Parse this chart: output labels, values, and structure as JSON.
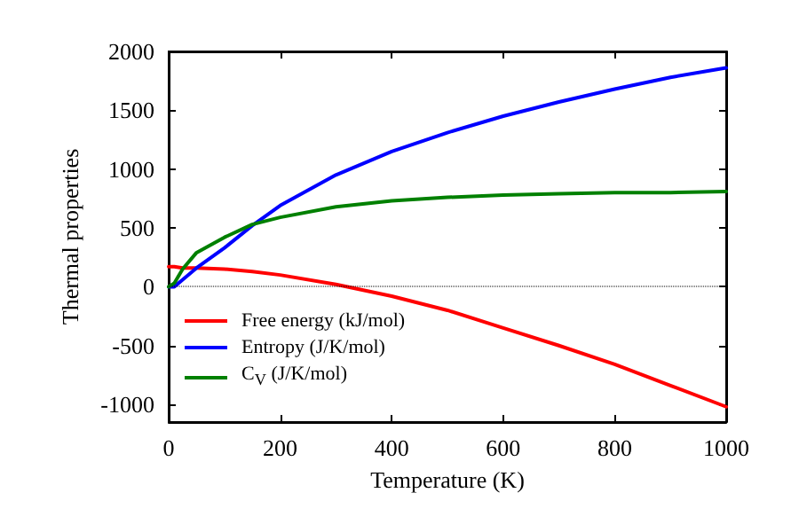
{
  "chart_data": {
    "type": "line",
    "xlabel": "Temperature (K)",
    "ylabel": "Thermal properties",
    "x": [
      0,
      10,
      25,
      50,
      100,
      150,
      200,
      300,
      400,
      500,
      600,
      700,
      800,
      900,
      1000
    ],
    "series": [
      {
        "name": "Free energy (kJ/mol)",
        "color": "#ff0000",
        "values": [
          170,
          170,
          160,
          160,
          150,
          130,
          100,
          20,
          -80,
          -200,
          -350,
          -500,
          -660,
          -840,
          -1020
        ]
      },
      {
        "name": "Entropy (J/K/mol)",
        "color": "#0000ff",
        "values": [
          0,
          0,
          60,
          160,
          330,
          520,
          690,
          950,
          1150,
          1310,
          1450,
          1570,
          1680,
          1780,
          1860
        ]
      },
      {
        "name": "C$_{V}$ (J/K/mol)",
        "color": "#008000",
        "values": [
          0,
          30,
          150,
          290,
          420,
          530,
          590,
          680,
          730,
          760,
          780,
          790,
          800,
          800,
          810
        ]
      }
    ],
    "xlim": [
      0,
      1000
    ],
    "xticks": [
      0,
      200,
      400,
      600,
      800,
      1000
    ],
    "ylim": [
      -1150,
      2000
    ],
    "yticks": [
      -1000,
      -500,
      0,
      500,
      1000,
      1500,
      2000
    ],
    "ref_lines": [
      {
        "axis": "y",
        "value": 0,
        "color": "#000000",
        "line_style": "dotted"
      }
    ],
    "legend": "bottom left",
    "grid": false,
    "marker": "none",
    "line_style": "solid"
  }
}
